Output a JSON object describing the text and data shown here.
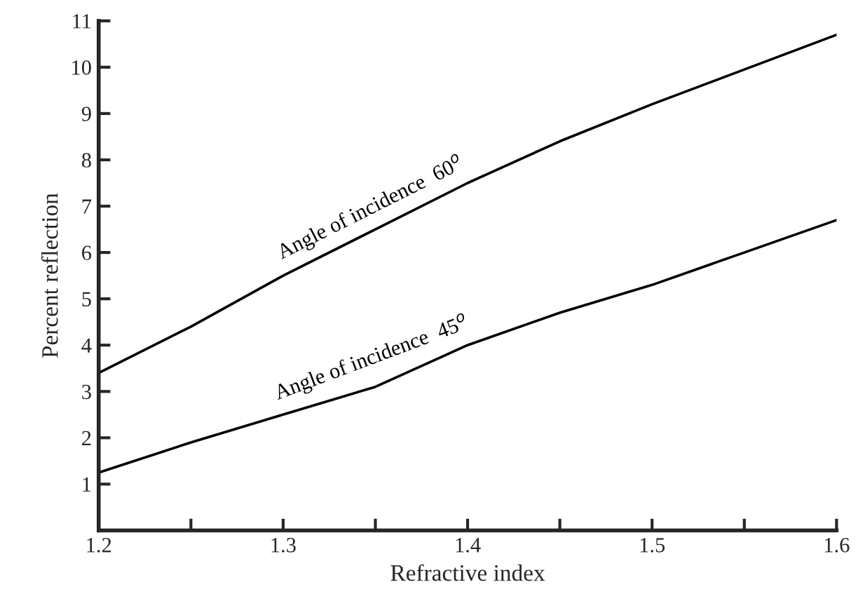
{
  "chart_data": {
    "type": "line",
    "xlabel": "Refractive index",
    "ylabel": "Percent reflection",
    "x": [
      1.2,
      1.25,
      1.3,
      1.35,
      1.4,
      1.45,
      1.5,
      1.55,
      1.6
    ],
    "series": [
      {
        "name": "Angle of incidence  60$^{o}$",
        "color": "#000000",
        "values": [
          3.4,
          4.4,
          5.5,
          6.5,
          7.5,
          8.4,
          9.2,
          9.95,
          10.7
        ]
      },
      {
        "name": "Angle of incidence  45$^{o}$",
        "color": "#000000",
        "values": [
          1.25,
          1.9,
          2.5,
          3.1,
          4.0,
          4.7,
          5.3,
          6.0,
          6.7
        ]
      }
    ],
    "xlim": [
      1.2,
      1.6
    ],
    "ylim": [
      0,
      11
    ],
    "xticks": [
      1.2,
      {
        "value": 1.25,
        "label": null
      },
      1.3,
      {
        "value": 1.35,
        "label": null
      },
      1.4,
      {
        "value": 1.45,
        "label": null
      },
      1.5,
      {
        "value": 1.55,
        "label": null
      },
      1.6
    ],
    "yticks": [
      1,
      2,
      3,
      4,
      5,
      6,
      7,
      8,
      9,
      10,
      11
    ],
    "grid": false,
    "legend": false,
    "marker": "none",
    "line_style": "solid"
  }
}
